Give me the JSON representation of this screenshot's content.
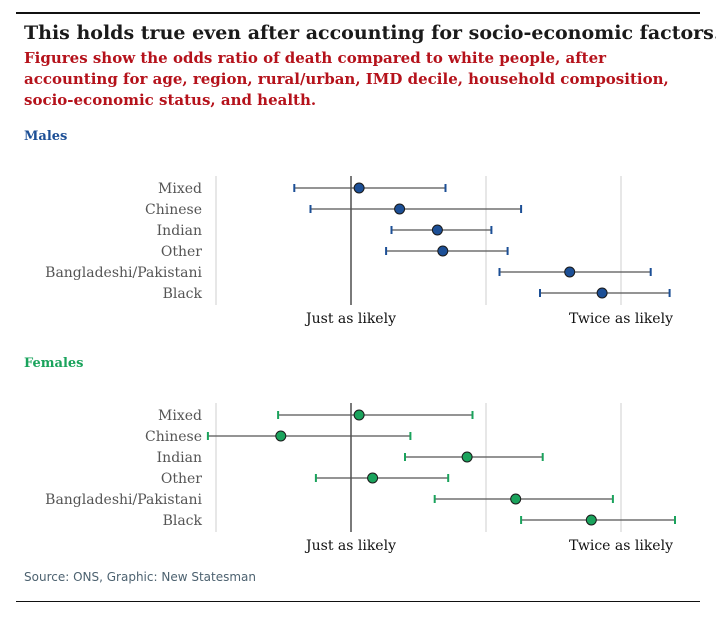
{
  "title": "This holds true even after accounting for socio-economic factors.",
  "subtitle": "Figures show the odds ratio of death compared to white people, after accounting for age, region, rural/urban, IMD decile, household composition, socio-economic status, and health.",
  "source": "Source: ONS, Graphic: New Statesman",
  "colors": {
    "males": "#1c4f96",
    "females": "#1aa35c",
    "title": "#1a1a1a",
    "subtitle": "#b5121b",
    "source": "#4d6270"
  },
  "chart_data": [
    {
      "type": "scatter",
      "panel": "Males",
      "categories": [
        "Mixed",
        "Chinese",
        "Indian",
        "Other",
        "Bangladeshi/Pakistani",
        "Black"
      ],
      "estimates": [
        1.03,
        1.18,
        1.32,
        1.34,
        1.81,
        1.93
      ],
      "lower": [
        0.79,
        0.85,
        1.15,
        1.13,
        1.55,
        1.7
      ],
      "upper": [
        1.35,
        1.63,
        1.52,
        1.58,
        2.11,
        2.18
      ],
      "xlim": [
        0.5,
        2.25
      ],
      "gridlines": [
        0.5,
        1.5,
        2.0
      ],
      "reference_line": 1.0,
      "ticks": [
        {
          "value": 1.0,
          "label": "Just as likely"
        },
        {
          "value": 2.0,
          "label": "Twice as likely"
        }
      ],
      "grid": true
    },
    {
      "type": "scatter",
      "panel": "Females",
      "categories": [
        "Mixed",
        "Chinese",
        "Indian",
        "Other",
        "Bangladeshi/Pakistani",
        "Black"
      ],
      "estimates": [
        1.03,
        0.74,
        1.43,
        1.08,
        1.61,
        1.89
      ],
      "lower": [
        0.73,
        0.47,
        1.2,
        0.87,
        1.31,
        1.63
      ],
      "upper": [
        1.45,
        1.22,
        1.71,
        1.36,
        1.97,
        2.2
      ],
      "xlim": [
        0.5,
        2.25
      ],
      "gridlines": [
        0.5,
        1.5,
        2.0
      ],
      "reference_line": 1.0,
      "ticks": [
        {
          "value": 1.0,
          "label": "Just as likely"
        },
        {
          "value": 2.0,
          "label": "Twice as likely"
        }
      ],
      "grid": true
    }
  ],
  "panels": {
    "males": {
      "label": "Males"
    },
    "females": {
      "label": "Females"
    }
  }
}
